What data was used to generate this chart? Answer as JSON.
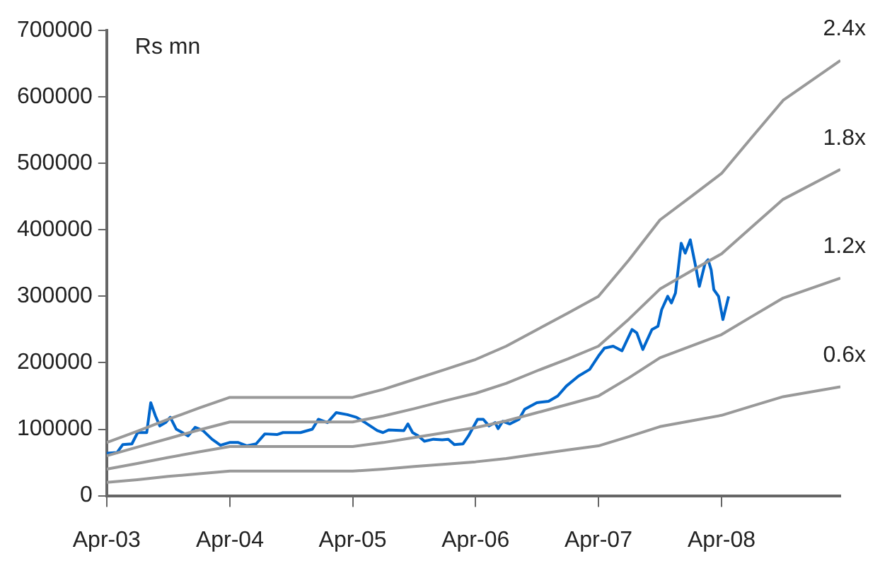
{
  "chart_data": {
    "type": "line",
    "ylabel": "Rs mn",
    "xlim": [
      "2003-04-01",
      "2009-03-20"
    ],
    "ylim": [
      0,
      700000
    ],
    "yticks": [
      0,
      100000,
      200000,
      300000,
      400000,
      500000,
      600000,
      700000
    ],
    "xticks": [
      {
        "value": "2003-04-01",
        "label": "Apr-03"
      },
      {
        "value": "2004-04-01",
        "label": "Apr-04"
      },
      {
        "value": "2005-04-01",
        "label": "Apr-05"
      },
      {
        "value": "2006-04-01",
        "label": "Apr-06"
      },
      {
        "value": "2007-04-01",
        "label": "Apr-07"
      },
      {
        "value": "2008-04-01",
        "label": "Apr-08"
      }
    ],
    "grid": false,
    "legend": false,
    "marker": "none",
    "line_style": "solid",
    "series": [
      {
        "name": "2.4x",
        "color": "#999999",
        "x": [
          "2003-04-01",
          "2003-07-01",
          "2003-10-01",
          "2004-01-01",
          "2004-04-01",
          "2005-04-01",
          "2005-07-01",
          "2005-10-01",
          "2006-01-01",
          "2006-04-01",
          "2006-07-01",
          "2006-10-01",
          "2007-01-01",
          "2007-04-01",
          "2007-07-01",
          "2007-10-01",
          "2008-01-01",
          "2008-04-01",
          "2008-07-01",
          "2008-10-01",
          "2009-03-20"
        ],
        "values": [
          80000,
          97000,
          115000,
          132000,
          148000,
          148000,
          160000,
          175000,
          190000,
          205000,
          225000,
          250000,
          275000,
          300000,
          355000,
          415000,
          450000,
          485000,
          540000,
          595000,
          655000
        ]
      },
      {
        "name": "1.8x",
        "color": "#999999",
        "x": [
          "2003-04-01",
          "2003-07-01",
          "2003-10-01",
          "2004-01-01",
          "2004-04-01",
          "2005-04-01",
          "2005-07-01",
          "2005-10-01",
          "2006-01-01",
          "2006-04-01",
          "2006-07-01",
          "2006-10-01",
          "2007-01-01",
          "2007-04-01",
          "2007-07-01",
          "2007-10-01",
          "2008-01-01",
          "2008-04-01",
          "2008-07-01",
          "2008-10-01",
          "2009-03-20"
        ],
        "values": [
          60000,
          73000,
          86000,
          99000,
          111000,
          111000,
          120000,
          131000,
          143000,
          154000,
          169000,
          188000,
          206000,
          225000,
          266000,
          311000,
          338000,
          364000,
          405000,
          446000,
          491000
        ]
      },
      {
        "name": "1.2x",
        "color": "#999999",
        "x": [
          "2003-04-01",
          "2003-07-01",
          "2003-10-01",
          "2004-01-01",
          "2004-04-01",
          "2005-04-01",
          "2005-07-01",
          "2005-10-01",
          "2006-01-01",
          "2006-04-01",
          "2006-07-01",
          "2006-10-01",
          "2007-01-01",
          "2007-04-01",
          "2007-07-01",
          "2007-10-01",
          "2008-01-01",
          "2008-04-01",
          "2008-07-01",
          "2008-10-01",
          "2009-03-20"
        ],
        "values": [
          40000,
          48500,
          57500,
          66000,
          74000,
          74000,
          80000,
          87500,
          95000,
          102500,
          112500,
          125000,
          137500,
          150000,
          177500,
          207500,
          225000,
          242500,
          270000,
          297500,
          327500
        ]
      },
      {
        "name": "0.6x",
        "color": "#999999",
        "x": [
          "2003-04-01",
          "2003-07-01",
          "2003-10-01",
          "2004-01-01",
          "2004-04-01",
          "2005-04-01",
          "2005-07-01",
          "2005-10-01",
          "2006-01-01",
          "2006-04-01",
          "2006-07-01",
          "2006-10-01",
          "2007-01-01",
          "2007-04-01",
          "2007-07-01",
          "2007-10-01",
          "2008-01-01",
          "2008-04-01",
          "2008-07-01",
          "2008-10-01",
          "2009-03-20"
        ],
        "values": [
          20000,
          24000,
          29000,
          33000,
          37000,
          37000,
          40000,
          44000,
          47500,
          51000,
          56000,
          62500,
          69000,
          75000,
          89000,
          104000,
          112500,
          121000,
          135000,
          149000,
          164000
        ]
      },
      {
        "color": "#0066cc",
        "x": [
          "2003-04-01",
          "2003-05-02",
          "2003-05-19",
          "2003-06-15",
          "2003-07-02",
          "2003-07-29",
          "2003-08-10",
          "2003-08-24",
          "2003-09-06",
          "2003-09-23",
          "2003-10-07",
          "2003-10-25",
          "2003-11-12",
          "2003-11-29",
          "2003-12-20",
          "2004-01-12",
          "2004-02-08",
          "2004-03-04",
          "2004-03-31",
          "2004-04-26",
          "2004-05-22",
          "2004-06-18",
          "2004-07-14",
          "2004-08-19",
          "2004-09-06",
          "2004-10-28",
          "2004-12-02",
          "2004-12-20",
          "2005-01-16",
          "2005-02-11",
          "2005-03-16",
          "2005-04-12",
          "2005-05-08",
          "2005-06-13",
          "2005-06-30",
          "2005-07-17",
          "2005-08-31",
          "2005-09-12",
          "2005-09-26",
          "2005-10-13",
          "2005-10-31",
          "2005-11-27",
          "2005-12-23",
          "2006-01-10",
          "2006-01-28",
          "2006-02-23",
          "2006-03-11",
          "2006-04-07",
          "2006-04-24",
          "2006-05-11",
          "2006-05-29",
          "2006-06-07",
          "2006-06-21",
          "2006-07-12",
          "2006-08-08",
          "2006-08-25",
          "2006-09-30",
          "2006-11-04",
          "2006-12-01",
          "2006-12-27",
          "2007-02-01",
          "2007-03-06",
          "2007-04-01",
          "2007-04-19",
          "2007-05-15",
          "2007-06-10",
          "2007-07-10",
          "2007-07-24",
          "2007-08-11",
          "2007-09-07",
          "2007-09-25",
          "2007-10-06",
          "2007-10-24",
          "2007-11-04",
          "2007-11-16",
          "2007-12-03",
          "2007-12-15",
          "2007-12-30",
          "2008-01-17",
          "2008-01-26",
          "2008-02-12",
          "2008-02-21",
          "2008-03-01",
          "2008-03-09",
          "2008-03-23",
          "2008-04-05",
          "2008-04-22"
        ],
        "values": [
          64000,
          65000,
          77000,
          78000,
          95000,
          95000,
          140000,
          120000,
          105000,
          110000,
          118000,
          100000,
          95000,
          90000,
          103000,
          98000,
          85000,
          76000,
          80000,
          80000,
          75000,
          78000,
          93000,
          92000,
          95000,
          95000,
          100000,
          115000,
          110000,
          125000,
          122000,
          118000,
          110000,
          98000,
          95000,
          99000,
          98000,
          108000,
          95000,
          90000,
          82000,
          85000,
          84000,
          85000,
          77000,
          78000,
          90000,
          115000,
          115000,
          105000,
          110000,
          101000,
          112000,
          108000,
          115000,
          130000,
          140000,
          142000,
          150000,
          165000,
          180000,
          190000,
          210000,
          222000,
          225000,
          218000,
          250000,
          245000,
          220000,
          250000,
          255000,
          280000,
          300000,
          290000,
          305000,
          380000,
          365000,
          385000,
          340000,
          315000,
          350000,
          355000,
          340000,
          310000,
          300000,
          265000,
          300000
        ]
      }
    ]
  }
}
